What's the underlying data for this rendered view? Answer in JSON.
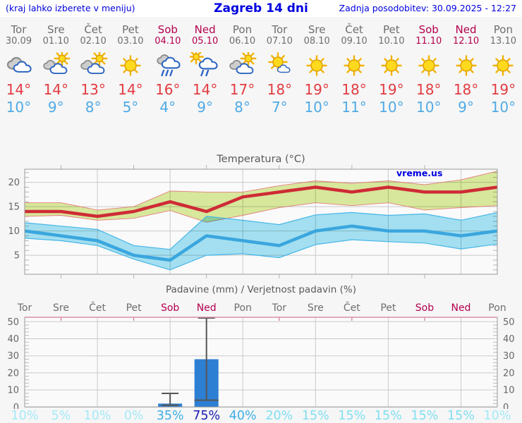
{
  "header": {
    "left_note": "(kraj lahko izberete v meniju)",
    "title": "Zagreb 14 dni",
    "updated": "Zadnja posodobitev: 30.09.2025 - 12:27"
  },
  "watermark": "vreme.us",
  "days": [
    {
      "name": "Tor",
      "date": "30.09",
      "weekend": false,
      "icon": "cloudy",
      "tmax": "14°",
      "tmin": "10°",
      "prob": "10%",
      "prob_color": "#A4EAF8"
    },
    {
      "name": "Sre",
      "date": "01.10",
      "weekend": false,
      "icon": "partly-cloudy",
      "tmax": "14°",
      "tmin": "9°",
      "prob": "5%",
      "prob_color": "#A4EAF8"
    },
    {
      "name": "Čet",
      "date": "02.10",
      "weekend": false,
      "icon": "partly-cloudy",
      "tmax": "13°",
      "tmin": "8°",
      "prob": "10%",
      "prob_color": "#A4EAF8"
    },
    {
      "name": "Pet",
      "date": "03.10",
      "weekend": false,
      "icon": "sunny",
      "tmax": "14°",
      "tmin": "5°",
      "prob": "0%",
      "prob_color": "#A4EAF8"
    },
    {
      "name": "Sob",
      "date": "04.10",
      "weekend": true,
      "icon": "rain",
      "tmax": "16°",
      "tmin": "4°",
      "prob": "35%",
      "prob_color": "#3FAFE4"
    },
    {
      "name": "Ned",
      "date": "05.10",
      "weekend": true,
      "icon": "sun-rain",
      "tmax": "14°",
      "tmin": "9°",
      "prob": "75%",
      "prob_color": "#1B1BB5"
    },
    {
      "name": "Pon",
      "date": "06.10",
      "weekend": false,
      "icon": "partly-cloudy",
      "tmax": "17°",
      "tmin": "8°",
      "prob": "40%",
      "prob_color": "#3FAFE4"
    },
    {
      "name": "Tor",
      "date": "07.10",
      "weekend": false,
      "icon": "mostly-sunny",
      "tmax": "18°",
      "tmin": "7°",
      "prob": "20%",
      "prob_color": "#7FDFF2"
    },
    {
      "name": "Sre",
      "date": "08.10",
      "weekend": false,
      "icon": "sunny",
      "tmax": "19°",
      "tmin": "10°",
      "prob": "15%",
      "prob_color": "#7FDFF2"
    },
    {
      "name": "Čet",
      "date": "09.10",
      "weekend": false,
      "icon": "sunny",
      "tmax": "18°",
      "tmin": "11°",
      "prob": "15%",
      "prob_color": "#7FDFF2"
    },
    {
      "name": "Pet",
      "date": "10.10",
      "weekend": false,
      "icon": "sunny",
      "tmax": "19°",
      "tmin": "10°",
      "prob": "15%",
      "prob_color": "#7FDFF2"
    },
    {
      "name": "Sob",
      "date": "11.10",
      "weekend": true,
      "icon": "sunny",
      "tmax": "18°",
      "tmin": "10°",
      "prob": "15%",
      "prob_color": "#7FDFF2"
    },
    {
      "name": "Ned",
      "date": "12.10",
      "weekend": true,
      "icon": "sunny",
      "tmax": "18°",
      "tmin": "9°",
      "prob": "15%",
      "prob_color": "#7FDFF2"
    },
    {
      "name": "Pon",
      "date": "13.10",
      "weekend": false,
      "icon": "sunny",
      "tmax": "19°",
      "tmin": "10°",
      "prob": "10%",
      "prob_color": "#A4EAF8"
    }
  ],
  "chart_data": [
    {
      "type": "area",
      "title": "Temperatura (°C)",
      "x_categories": [
        "Tor 30.09",
        "Sre 01.10",
        "Čet 02.10",
        "Pet 03.10",
        "Sob 04.10",
        "Ned 05.10",
        "Pon 06.10",
        "Tor 07.10",
        "Sre 08.10",
        "Čet 09.10",
        "Pet 10.10",
        "Sob 11.10",
        "Ned 12.10",
        "Pon 13.10"
      ],
      "ylim": [
        0,
        23
      ],
      "yticks": [
        5,
        10,
        15,
        20
      ],
      "grid": true,
      "series": [
        {
          "name": "max",
          "values": [
            14,
            14,
            13,
            14,
            16,
            14,
            17,
            18,
            19,
            18,
            19,
            18,
            18,
            19
          ]
        },
        {
          "name": "max_upper",
          "values": [
            15.8,
            15.8,
            14.3,
            15,
            18.2,
            18,
            18,
            19.3,
            20.3,
            19.8,
            20.3,
            19.5,
            20.5,
            22.3
          ]
        },
        {
          "name": "max_lower",
          "values": [
            13,
            13.2,
            12.2,
            12.6,
            14.2,
            11.8,
            13.2,
            14.8,
            15.8,
            15.2,
            15.8,
            14.3,
            14.8,
            15.2
          ]
        },
        {
          "name": "min",
          "values": [
            10,
            9,
            8,
            5,
            4,
            9,
            8,
            7,
            10,
            11,
            10,
            10,
            9,
            10
          ]
        },
        {
          "name": "min_upper",
          "values": [
            11.7,
            11,
            10.3,
            7,
            6.2,
            13,
            12.2,
            11.3,
            13.3,
            13.8,
            13.2,
            13.5,
            12.2,
            13.8
          ]
        },
        {
          "name": "min_lower",
          "values": [
            8.5,
            8,
            7,
            4.2,
            2,
            5,
            5.3,
            4.5,
            7.2,
            8.2,
            7.8,
            7.5,
            6.3,
            7.3
          ]
        }
      ],
      "colors": {
        "max_line": "#CE2B35",
        "max_band": "#DCEC9E",
        "max_band_edge": "#E57E7E",
        "min_line": "#3AA6DE",
        "min_band": "#A6E4F5",
        "min_band_edge": "#45B5E7"
      }
    },
    {
      "type": "bar",
      "title": "Padavine (mm) / Verjetnost padavin (%)",
      "categories": [
        "Tor",
        "Sre",
        "Čet",
        "Pet",
        "Sob",
        "Ned",
        "Pon",
        "Tor",
        "Sre",
        "Čet",
        "Pet",
        "Sob",
        "Ned",
        "Pon"
      ],
      "ylim": [
        0,
        52.5
      ],
      "yticks": [
        0,
        10,
        20,
        30,
        40,
        50
      ],
      "grid": true,
      "bars": [
        {
          "day_index": 4,
          "value": 2,
          "whisker_low": 1,
          "whisker_high": 8
        },
        {
          "day_index": 5,
          "value": 28,
          "median": 4,
          "whisker_low": 4,
          "whisker_high": 52.5
        }
      ],
      "probabilities_percent": [
        10,
        5,
        10,
        0,
        35,
        75,
        40,
        20,
        15,
        15,
        15,
        15,
        15,
        10
      ],
      "colors": {
        "bar": "#2D7FD3",
        "whisker": "#555555",
        "top_axis": "#DA8FA4"
      }
    }
  ],
  "style_colors": {
    "header_blue": "#0000E0",
    "weekday_gray": "#6E6E6E",
    "weekend_red": "#B4004E",
    "tmax_red": "#E23B41",
    "tmin_blue": "#4FAAE4",
    "grid": "#CACACA",
    "border": "#999999"
  }
}
